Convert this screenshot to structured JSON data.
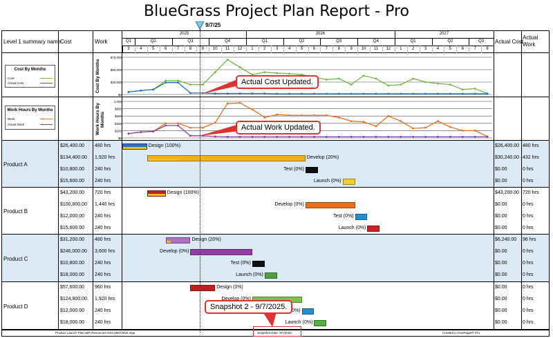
{
  "title": "BlueGrass Project Plan Report - Pro",
  "today_label": "9/7/25",
  "columns": {
    "summary": "Level 1 summary name",
    "cost": "Cost",
    "work": "Work",
    "actual_cost": "Actual Cost",
    "actual_work": "Actual Work"
  },
  "years": [
    "2025",
    "2026",
    "2027"
  ],
  "quarters": [
    "Q1",
    "Q2",
    "Q3",
    "Q4",
    "Q1",
    "Q2",
    "Q3",
    "Q4",
    "Q1",
    "Q2",
    "Q3"
  ],
  "months": [
    "3",
    "4",
    "5",
    "6",
    "7",
    "8",
    "9",
    "10",
    "11",
    "12",
    "1",
    "2",
    "3",
    "4",
    "5",
    "6",
    "7",
    "8",
    "9",
    "10",
    "11",
    "12",
    "1",
    "2",
    "3",
    "4",
    "5",
    "6",
    "7",
    "8"
  ],
  "cost_chart": {
    "side_label": "Cost By Months",
    "legend_title": "Cost By Months",
    "legend": [
      {
        "name": "Cost",
        "color": "#70b840"
      },
      {
        "name": "Actual Cost",
        "color": "#2070c0"
      }
    ],
    "y_ticks": [
      "$75,000",
      "$50,000",
      "$25,000",
      "$0"
    ],
    "ymax": 75000,
    "cost": [
      5000,
      8000,
      10000,
      28000,
      28000,
      20000,
      20000,
      45000,
      70000,
      55000,
      40000,
      45000,
      43000,
      42000,
      40000,
      35000,
      30000,
      32000,
      20000,
      38000,
      32000,
      18000,
      20000,
      32000,
      25000,
      22000,
      20000,
      10000,
      12000,
      2000
    ],
    "actual_cost": [
      5000,
      8000,
      10000,
      24000,
      24000,
      3000,
      3000,
      2000,
      2000,
      2000,
      2000,
      2000,
      1500,
      1500,
      1500,
      1500,
      1500,
      1500,
      1500,
      1500,
      1500,
      1500,
      1500,
      1500,
      1500,
      1500,
      1500,
      1500,
      1500,
      1500
    ]
  },
  "work_chart": {
    "side_label": "Work Hours By Months",
    "legend_title": "Work Hours By Months",
    "legend": [
      {
        "name": "Work",
        "color": "#e87020"
      },
      {
        "name": "Actual Work",
        "color": "#8040a0"
      }
    ],
    "y_ticks": [
      "1,000",
      "$800",
      "$600",
      "$400",
      "$200",
      "$0"
    ],
    "ymax": 1000,
    "work": [
      120,
      160,
      180,
      400,
      400,
      280,
      280,
      420,
      940,
      960,
      780,
      560,
      640,
      620,
      620,
      620,
      620,
      560,
      460,
      440,
      320,
      600,
      460,
      260,
      280,
      460,
      300,
      200,
      200,
      40
    ],
    "actual_work": [
      120,
      160,
      180,
      340,
      340,
      60,
      60,
      40,
      30,
      30,
      30,
      30,
      30,
      30,
      30,
      30,
      30,
      30,
      30,
      30,
      30,
      30,
      30,
      30,
      30,
      30,
      30,
      30,
      30,
      30
    ]
  },
  "callouts": {
    "cost": "Actual Cost Updated.",
    "work": "Actual Work Updated.",
    "snapshot": "Snapshot 2 - 9/7/2025."
  },
  "groups": [
    {
      "name": "Product A",
      "tasks": [
        {
          "cost": "$26,400.00",
          "work": "480 hrs",
          "label": "Design (100%)",
          "start": 0,
          "end": 2,
          "progress": 1.0,
          "color": "#2f6fc0",
          "actual_cost": "$26,400.00",
          "actual_work": "480 hrs"
        },
        {
          "cost": "$134,400.00",
          "work": "1,920 hrs",
          "label": "Develop (20%)",
          "start": 2,
          "end": 14.8,
          "progress": 0.2,
          "color": "#f0b020",
          "actual_cost": "$30,240.00",
          "actual_work": "432 hrs"
        },
        {
          "cost": "$10,800.00",
          "work": "240 hrs",
          "label": "Test (0%)",
          "start": 14.8,
          "end": 15.8,
          "progress": 0,
          "color": "#101010",
          "actual_cost": "$0.00",
          "actual_work": "0 hrs"
        },
        {
          "cost": "$15,600.00",
          "work": "240 hrs",
          "label": "Launch (0%)",
          "start": 17.8,
          "end": 18.8,
          "progress": 0,
          "color": "#f0d030",
          "actual_cost": "$0.00",
          "actual_work": "0 hrs"
        }
      ]
    },
    {
      "name": "Product B",
      "tasks": [
        {
          "cost": "$43,200.00",
          "work": "720 hrs",
          "label": "Design (100%)",
          "start": 2,
          "end": 3.5,
          "progress": 1.0,
          "color": "#c02020",
          "actual_cost": "$43,200.00",
          "actual_work": "720 hrs"
        },
        {
          "cost": "$100,800.00",
          "work": "1,440 hrs",
          "label": "Develop (0%)",
          "start": 14.8,
          "end": 18.8,
          "progress": 0,
          "color": "#e87020",
          "actual_cost": "$0.00",
          "actual_work": "0 hrs"
        },
        {
          "cost": "$12,000.00",
          "work": "240 hrs",
          "label": "Test (0%)",
          "start": 18.8,
          "end": 19.8,
          "progress": 0,
          "color": "#2090d0",
          "actual_cost": "$0.00",
          "actual_work": "0 hrs"
        },
        {
          "cost": "$15,600.00",
          "work": "240 hrs",
          "label": "Launch (0%)",
          "start": 19.8,
          "end": 20.8,
          "progress": 0,
          "color": "#d02020",
          "actual_cost": "$0.00",
          "actual_work": "0 hrs"
        }
      ]
    },
    {
      "name": "Product C",
      "tasks": [
        {
          "cost": "$31,200.00",
          "work": "480 hrs",
          "label": "Design (20%)",
          "start": 3.5,
          "end": 5.5,
          "progress": 0.2,
          "color": "#b070c0",
          "actual_cost": "$6,240.00",
          "actual_work": "96 hrs"
        },
        {
          "cost": "$246,000.00",
          "work": "3,600 hrs",
          "label": "Develop (0%)",
          "start": 5.5,
          "end": 10.5,
          "progress": 0,
          "color": "#9040a0",
          "actual_cost": "$0.00",
          "actual_work": "0 hrs"
        },
        {
          "cost": "$10,800.00",
          "work": "240 hrs",
          "label": "Test (0%)",
          "start": 10.5,
          "end": 11.5,
          "progress": 0,
          "color": "#101010",
          "actual_cost": "$0.00",
          "actual_work": "0 hrs"
        },
        {
          "cost": "$18,000.00",
          "work": "240 hrs",
          "label": "Launch (0%)",
          "start": 11.5,
          "end": 12.5,
          "progress": 0,
          "color": "#50a040",
          "actual_cost": "$0.00",
          "actual_work": "0 hrs"
        }
      ]
    },
    {
      "name": "Product D",
      "tasks": [
        {
          "cost": "$57,600.00",
          "work": "960 hrs",
          "label": "Design (0%)",
          "start": 5.5,
          "end": 7.5,
          "progress": 0,
          "color": "#c02020",
          "actual_cost": "$0.00",
          "actual_work": "0 hrs"
        },
        {
          "cost": "$124,800.00",
          "work": "1,920 hrs",
          "label": "Develop (0%)",
          "start": 10.5,
          "end": 14.5,
          "progress": 0,
          "color": "#80c050",
          "actual_cost": "$0.00",
          "actual_work": "0 hrs"
        },
        {
          "cost": "$12,000.00",
          "work": "240 hrs",
          "label": "Test (0%)",
          "start": 14.5,
          "end": 15.5,
          "progress": 0,
          "color": "#2090d0",
          "actual_cost": "$0.00",
          "actual_work": "0 hrs"
        },
        {
          "cost": "$18,000.00",
          "work": "240 hrs",
          "label": "Launch (0%)",
          "start": 15.5,
          "end": 16.5,
          "progress": 0,
          "color": "#50b040",
          "actual_cost": "$0.00",
          "actual_work": "0 hrs"
        }
      ]
    }
  ],
  "footer": {
    "left": "Product Launch Plan with Resources-SS2-09072025.mpp",
    "center": "Snapshot Date: 9/7/2025",
    "right": "Created in OnePager® Pro"
  }
}
